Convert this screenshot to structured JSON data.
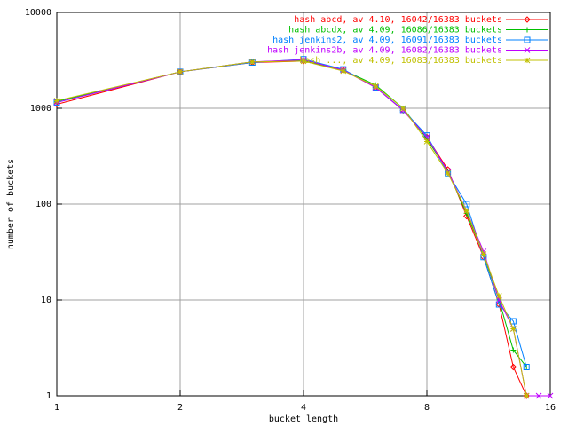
{
  "chart_data": {
    "type": "line",
    "xlabel": "bucket length",
    "ylabel": "number of buckets",
    "xscale": "log",
    "yscale": "log",
    "xlim": [
      1,
      16
    ],
    "ylim": [
      1,
      10000
    ],
    "xticks": [
      1,
      2,
      4,
      8,
      16
    ],
    "yticks": [
      1,
      10,
      100,
      1000,
      10000
    ],
    "grid": true,
    "legend": "top-right",
    "x": [
      1,
      2,
      3,
      4,
      5,
      6,
      7,
      8,
      9,
      10,
      11,
      12,
      13,
      14,
      15,
      16
    ],
    "series": [
      {
        "name": "hash abcd, av 4.10, 16042/16383 buckets",
        "color": "#ff0000",
        "marker": "diamond",
        "values": [
          1100,
          2400,
          3000,
          3100,
          2500,
          1650,
          950,
          500,
          230,
          75,
          28,
          9,
          2,
          1,
          null,
          null
        ]
      },
      {
        "name": "hash abcdx, av 4.09, 16086/16383 buckets",
        "color": "#00c000",
        "marker": "plus",
        "values": [
          1180,
          2400,
          3050,
          3150,
          2500,
          1750,
          1000,
          480,
          220,
          80,
          30,
          10,
          3,
          2,
          null,
          null
        ]
      },
      {
        "name": "hash jenkins2, av 4.09, 16091/16383 buckets",
        "color": "#0080ff",
        "marker": "square",
        "values": [
          1150,
          2400,
          3000,
          3250,
          2550,
          1650,
          960,
          520,
          210,
          100,
          28,
          9,
          6,
          2,
          null,
          null
        ]
      },
      {
        "name": "hash jenkins2b, av 4.09, 16082/16383 buckets",
        "color": "#c000ff",
        "marker": "cross",
        "values": [
          1150,
          2400,
          3050,
          3200,
          2500,
          1650,
          950,
          500,
          220,
          85,
          32,
          10,
          5,
          1,
          1,
          1
        ]
      },
      {
        "name": "hash ..., av 4.09, 16083/16383 buckets",
        "color": "#c0c000",
        "marker": "star",
        "values": [
          1200,
          2400,
          3050,
          3100,
          2450,
          1700,
          1000,
          450,
          210,
          85,
          30,
          11,
          5,
          1,
          null,
          null
        ]
      }
    ]
  }
}
